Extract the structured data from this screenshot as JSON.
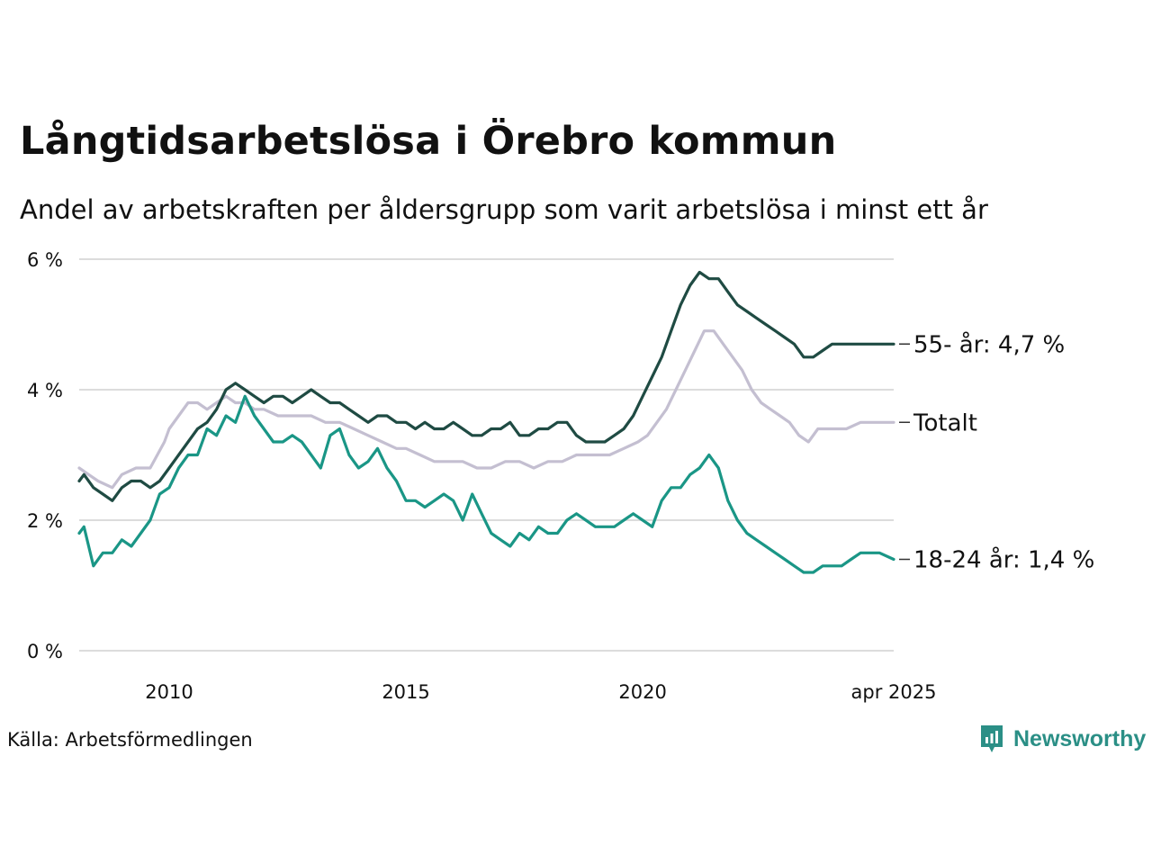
{
  "header": {
    "title": "Långtidsarbetslösa i Örebro kommun",
    "subtitle": "Andel av arbetskraften per åldersgrupp som varit arbetslösa i minst ett år"
  },
  "footer": {
    "source": "Källa: Arbetsförmedlingen",
    "brand": "Newsworthy"
  },
  "colors": {
    "series_55": "#1f4b43",
    "series_total": "#c4bfd1",
    "series_18_24": "#1a9686",
    "grid": "#dcdcdc",
    "brand": "#2b8f86"
  },
  "chart_data": {
    "type": "line",
    "title": "Långtidsarbetslösa i Örebro kommun",
    "subtitle": "Andel av arbetskraften per åldersgrupp som varit arbetslösa i minst ett år",
    "xlim": [
      2008.1,
      2025.3
    ],
    "ylim": [
      0,
      6
    ],
    "yticks": [
      {
        "value": 0,
        "label": "0 %"
      },
      {
        "value": 2,
        "label": "2 %"
      },
      {
        "value": 4,
        "label": "4 %"
      },
      {
        "value": 6,
        "label": "6 %"
      }
    ],
    "xticks": [
      {
        "value": 2010,
        "label": "2010"
      },
      {
        "value": 2015,
        "label": "2015"
      },
      {
        "value": 2020,
        "label": "2020"
      },
      {
        "value": 2025.3,
        "label": "apr 2025"
      }
    ],
    "grid": true,
    "series": [
      {
        "name": "Totalt",
        "end_label": "Totalt",
        "color_key": "series_total",
        "x": [
          2008.1,
          2008.3,
          2008.5,
          2008.8,
          2009.0,
          2009.3,
          2009.6,
          2009.9,
          2010.0,
          2010.2,
          2010.4,
          2010.6,
          2010.8,
          2011.0,
          2011.2,
          2011.4,
          2011.6,
          2011.8,
          2012.0,
          2012.3,
          2012.5,
          2012.8,
          2013.0,
          2013.3,
          2013.6,
          2013.9,
          2014.2,
          2014.5,
          2014.8,
          2015.0,
          2015.3,
          2015.6,
          2015.9,
          2016.2,
          2016.5,
          2016.8,
          2017.1,
          2017.4,
          2017.7,
          2018.0,
          2018.3,
          2018.6,
          2018.8,
          2019.0,
          2019.3,
          2019.6,
          2019.9,
          2020.1,
          2020.3,
          2020.5,
          2020.7,
          2020.9,
          2021.1,
          2021.3,
          2021.5,
          2021.7,
          2021.9,
          2022.1,
          2022.3,
          2022.5,
          2022.7,
          2022.9,
          2023.1,
          2023.3,
          2023.5,
          2023.7,
          2024.0,
          2024.3,
          2024.6,
          2024.9,
          2025.3
        ],
        "values": [
          2.8,
          2.7,
          2.6,
          2.5,
          2.7,
          2.8,
          2.8,
          3.2,
          3.4,
          3.6,
          3.8,
          3.8,
          3.7,
          3.8,
          3.9,
          3.8,
          3.8,
          3.7,
          3.7,
          3.6,
          3.6,
          3.6,
          3.6,
          3.5,
          3.5,
          3.4,
          3.3,
          3.2,
          3.1,
          3.1,
          3.0,
          2.9,
          2.9,
          2.9,
          2.8,
          2.8,
          2.9,
          2.9,
          2.8,
          2.9,
          2.9,
          3.0,
          3.0,
          3.0,
          3.0,
          3.1,
          3.2,
          3.3,
          3.5,
          3.7,
          4.0,
          4.3,
          4.6,
          4.9,
          4.9,
          4.7,
          4.5,
          4.3,
          4.0,
          3.8,
          3.7,
          3.6,
          3.5,
          3.3,
          3.2,
          3.4,
          3.4,
          3.4,
          3.5,
          3.5,
          3.5
        ],
        "last_value": 3.5
      },
      {
        "name": "55- år",
        "end_label": "55- år: 4,7 %",
        "color_key": "series_55",
        "x": [
          2008.1,
          2008.2,
          2008.4,
          2008.6,
          2008.8,
          2009.0,
          2009.2,
          2009.4,
          2009.6,
          2009.8,
          2010.0,
          2010.2,
          2010.4,
          2010.6,
          2010.8,
          2011.0,
          2011.2,
          2011.4,
          2011.6,
          2011.8,
          2012.0,
          2012.2,
          2012.4,
          2012.6,
          2012.8,
          2013.0,
          2013.2,
          2013.4,
          2013.6,
          2013.8,
          2014.0,
          2014.2,
          2014.4,
          2014.6,
          2014.8,
          2015.0,
          2015.2,
          2015.4,
          2015.6,
          2015.8,
          2016.0,
          2016.2,
          2016.4,
          2016.6,
          2016.8,
          2017.0,
          2017.2,
          2017.4,
          2017.6,
          2017.8,
          2018.0,
          2018.2,
          2018.4,
          2018.6,
          2018.8,
          2019.0,
          2019.2,
          2019.4,
          2019.6,
          2019.8,
          2020.0,
          2020.2,
          2020.4,
          2020.6,
          2020.8,
          2021.0,
          2021.2,
          2021.4,
          2021.6,
          2021.8,
          2022.0,
          2022.2,
          2022.4,
          2022.6,
          2022.8,
          2023.0,
          2023.2,
          2023.4,
          2023.6,
          2023.8,
          2024.0,
          2024.2,
          2024.4,
          2024.6,
          2024.8,
          2025.0,
          2025.3
        ],
        "values": [
          2.6,
          2.7,
          2.5,
          2.4,
          2.3,
          2.5,
          2.6,
          2.6,
          2.5,
          2.6,
          2.8,
          3.0,
          3.2,
          3.4,
          3.5,
          3.7,
          4.0,
          4.1,
          4.0,
          3.9,
          3.8,
          3.9,
          3.9,
          3.8,
          3.9,
          4.0,
          3.9,
          3.8,
          3.8,
          3.7,
          3.6,
          3.5,
          3.6,
          3.6,
          3.5,
          3.5,
          3.4,
          3.5,
          3.4,
          3.4,
          3.5,
          3.4,
          3.3,
          3.3,
          3.4,
          3.4,
          3.5,
          3.3,
          3.3,
          3.4,
          3.4,
          3.5,
          3.5,
          3.3,
          3.2,
          3.2,
          3.2,
          3.3,
          3.4,
          3.6,
          3.9,
          4.2,
          4.5,
          4.9,
          5.3,
          5.6,
          5.8,
          5.7,
          5.7,
          5.5,
          5.3,
          5.2,
          5.1,
          5.0,
          4.9,
          4.8,
          4.7,
          4.5,
          4.5,
          4.6,
          4.7,
          4.7,
          4.7,
          4.7,
          4.7,
          4.7,
          4.7
        ],
        "last_value": 4.7
      },
      {
        "name": "18-24 år",
        "end_label": "18-24 år: 1,4 %",
        "color_key": "series_18_24",
        "x": [
          2008.1,
          2008.2,
          2008.4,
          2008.6,
          2008.8,
          2009.0,
          2009.2,
          2009.4,
          2009.6,
          2009.8,
          2010.0,
          2010.2,
          2010.4,
          2010.6,
          2010.8,
          2011.0,
          2011.2,
          2011.4,
          2011.6,
          2011.8,
          2012.0,
          2012.2,
          2012.4,
          2012.6,
          2012.8,
          2013.0,
          2013.2,
          2013.4,
          2013.6,
          2013.8,
          2014.0,
          2014.2,
          2014.4,
          2014.6,
          2014.8,
          2015.0,
          2015.2,
          2015.4,
          2015.6,
          2015.8,
          2016.0,
          2016.2,
          2016.4,
          2016.6,
          2016.8,
          2017.0,
          2017.2,
          2017.4,
          2017.6,
          2017.8,
          2018.0,
          2018.2,
          2018.4,
          2018.6,
          2018.8,
          2019.0,
          2019.2,
          2019.4,
          2019.6,
          2019.8,
          2020.0,
          2020.2,
          2020.4,
          2020.6,
          2020.8,
          2021.0,
          2021.2,
          2021.4,
          2021.6,
          2021.8,
          2022.0,
          2022.2,
          2022.4,
          2022.6,
          2022.8,
          2023.0,
          2023.2,
          2023.4,
          2023.6,
          2023.8,
          2024.0,
          2024.2,
          2024.4,
          2024.6,
          2024.8,
          2025.0,
          2025.3
        ],
        "values": [
          1.8,
          1.9,
          1.3,
          1.5,
          1.5,
          1.7,
          1.6,
          1.8,
          2.0,
          2.4,
          2.5,
          2.8,
          3.0,
          3.0,
          3.4,
          3.3,
          3.6,
          3.5,
          3.9,
          3.6,
          3.4,
          3.2,
          3.2,
          3.3,
          3.2,
          3.0,
          2.8,
          3.3,
          3.4,
          3.0,
          2.8,
          2.9,
          3.1,
          2.8,
          2.6,
          2.3,
          2.3,
          2.2,
          2.3,
          2.4,
          2.3,
          2.0,
          2.4,
          2.1,
          1.8,
          1.7,
          1.6,
          1.8,
          1.7,
          1.9,
          1.8,
          1.8,
          2.0,
          2.1,
          2.0,
          1.9,
          1.9,
          1.9,
          2.0,
          2.1,
          2.0,
          1.9,
          2.3,
          2.5,
          2.5,
          2.7,
          2.8,
          3.0,
          2.8,
          2.3,
          2.0,
          1.8,
          1.7,
          1.6,
          1.5,
          1.4,
          1.3,
          1.2,
          1.2,
          1.3,
          1.3,
          1.3,
          1.4,
          1.5,
          1.5,
          1.5,
          1.4
        ],
        "last_value": 1.4
      }
    ]
  }
}
